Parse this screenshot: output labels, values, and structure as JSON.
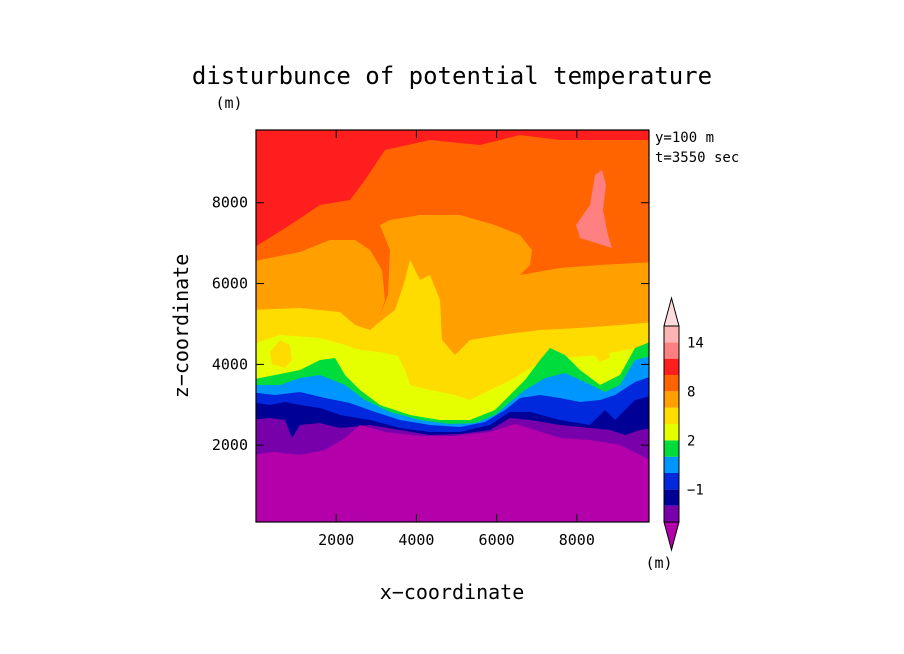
{
  "chart_data": {
    "type": "heatmap",
    "title": "disturbunce of potential temperature",
    "xlabel": "x−coordinate",
    "ylabel": "z−coordinate",
    "x_unit": "(m)",
    "y_unit": "(m)",
    "colorbar_unit": "(m)",
    "annotations": [
      "y=100 m",
      "t=3550 sec"
    ],
    "xlim": [
      0,
      9800
    ],
    "ylim": [
      100,
      9800
    ],
    "x_ticks": [
      2000,
      4000,
      6000,
      8000
    ],
    "y_ticks": [
      2000,
      4000,
      6000,
      8000
    ],
    "x_tick_labels": [
      "2000",
      "4000",
      "6000",
      "8000"
    ],
    "y_tick_labels": [
      "2000",
      "4000",
      "6000",
      "8000"
    ],
    "colorbar": {
      "levels_low_to_high": [
        -3,
        -2,
        -1,
        0,
        1,
        2,
        4,
        6,
        8,
        10,
        12,
        14,
        16
      ],
      "colors_low_to_high": [
        "#b400aa",
        "#7800aa",
        "#000096",
        "#0028dc",
        "#0096ff",
        "#00dc3c",
        "#e6ff00",
        "#ffdc00",
        "#ffa000",
        "#ff6400",
        "#ff1e1e",
        "#ff8080",
        "#ffb4b4",
        "#ffdcdc"
      ],
      "tick_labels": [
        "14",
        "8",
        "2",
        "−1"
      ],
      "tick_values": [
        14,
        8,
        2,
        -1
      ]
    },
    "contour_fill_by_height_approx": [
      {
        "z_range": [
          100,
          2600
        ],
        "value_range": [
          -3,
          -2
        ]
      },
      {
        "z_range": [
          2600,
          3500
        ],
        "value_range": [
          -2,
          1
        ]
      },
      {
        "z_range": [
          3500,
          5000
        ],
        "value_range": [
          1,
          4
        ]
      },
      {
        "z_range": [
          5000,
          6500
        ],
        "value_range": [
          4,
          8
        ]
      },
      {
        "z_range": [
          6500,
          9800
        ],
        "value_range": [
          8,
          12
        ]
      }
    ]
  }
}
